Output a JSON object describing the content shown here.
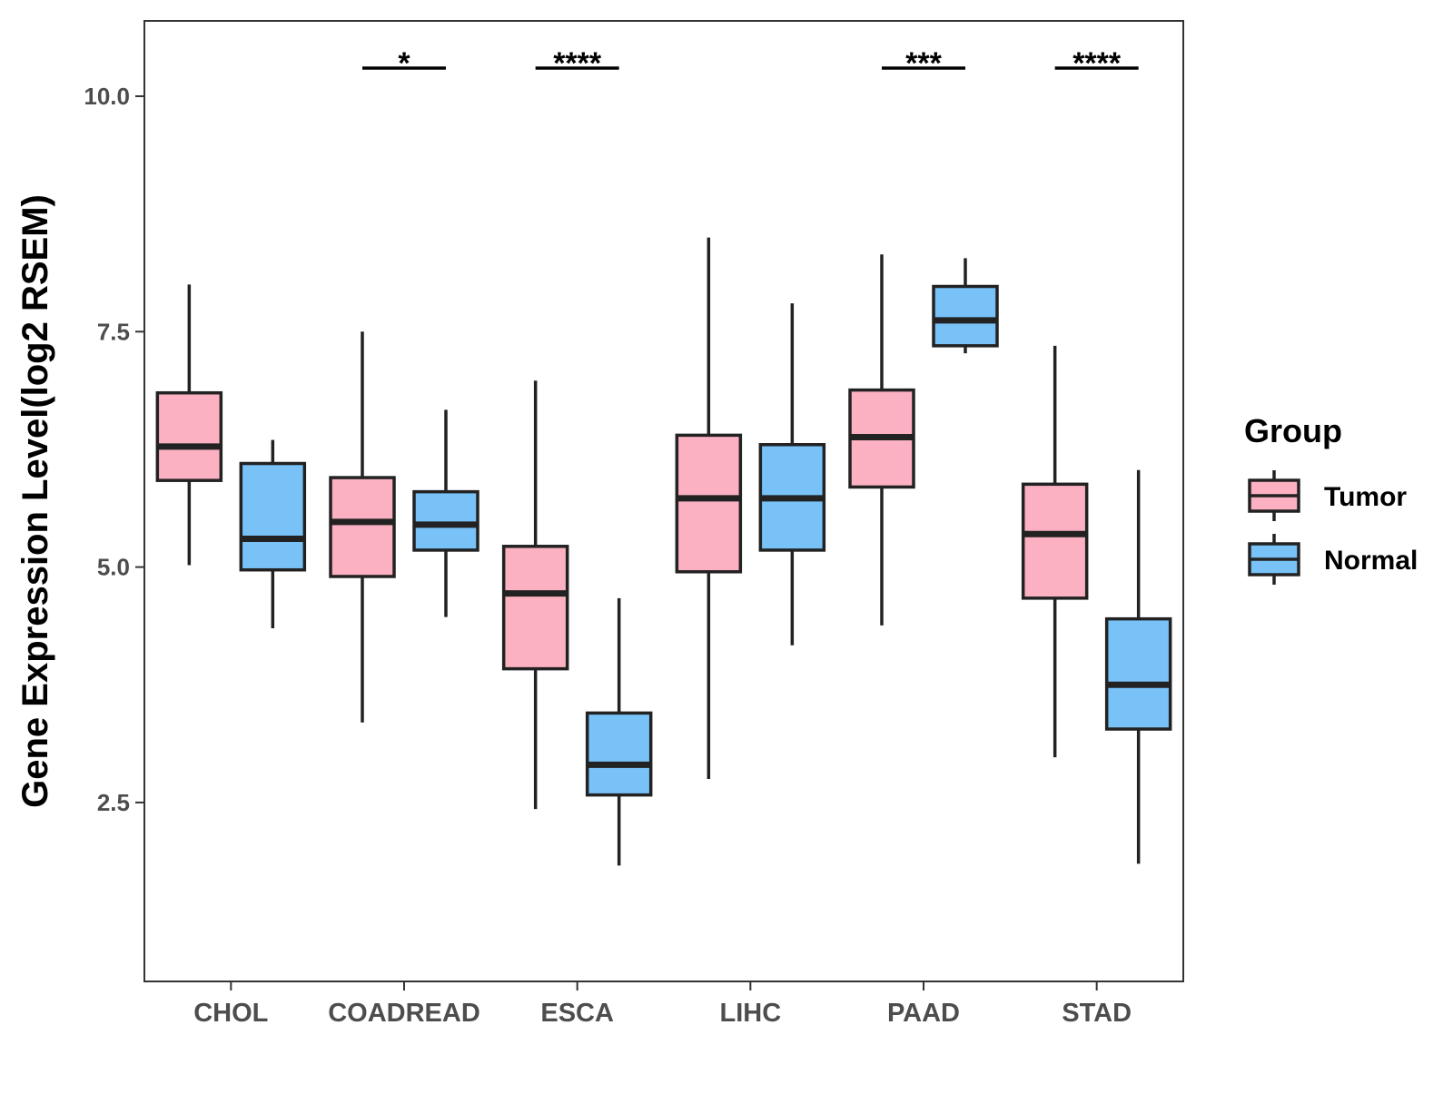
{
  "chart_data": {
    "type": "boxplot",
    "ylabel": "Gene Expression Level(log2 RSEM)",
    "xlabel": "",
    "ylim": [
      0.6,
      10.8
    ],
    "yticks": [
      "2.5",
      "5.0",
      "7.5",
      "10.0"
    ],
    "categories": [
      "CHOL",
      "COADREAD",
      "ESCA",
      "LIHC",
      "PAAD",
      "STAD"
    ],
    "legend": {
      "title": "Group",
      "position": "right"
    },
    "series": [
      {
        "name": "Tumor",
        "color": "#FBB1C2",
        "boxes": [
          {
            "min": 5.02,
            "q1": 5.92,
            "median": 6.28,
            "q3": 6.85,
            "max": 8.0
          },
          {
            "min": 3.35,
            "q1": 4.9,
            "median": 5.48,
            "q3": 5.95,
            "max": 7.5
          },
          {
            "min": 2.43,
            "q1": 3.92,
            "median": 4.72,
            "q3": 5.22,
            "max": 6.98
          },
          {
            "min": 2.75,
            "q1": 4.95,
            "median": 5.73,
            "q3": 6.4,
            "max": 8.5
          },
          {
            "min": 4.38,
            "q1": 5.85,
            "median": 6.38,
            "q3": 6.88,
            "max": 8.32
          },
          {
            "min": 2.98,
            "q1": 4.67,
            "median": 5.35,
            "q3": 5.88,
            "max": 7.35
          }
        ]
      },
      {
        "name": "Normal",
        "color": "#78C2F8",
        "boxes": [
          {
            "min": 4.35,
            "q1": 4.97,
            "median": 5.3,
            "q3": 6.1,
            "max": 6.35
          },
          {
            "min": 4.47,
            "q1": 5.18,
            "median": 5.45,
            "q3": 5.8,
            "max": 6.67
          },
          {
            "min": 1.83,
            "q1": 2.58,
            "median": 2.9,
            "q3": 3.45,
            "max": 4.67
          },
          {
            "min": 4.17,
            "q1": 5.18,
            "median": 5.73,
            "q3": 6.3,
            "max": 7.8
          },
          {
            "min": 7.27,
            "q1": 7.35,
            "median": 7.62,
            "q3": 7.98,
            "max": 8.28
          },
          {
            "min": 1.85,
            "q1": 3.28,
            "median": 3.75,
            "q3": 4.45,
            "max": 6.03
          }
        ]
      }
    ],
    "significance": [
      {
        "category": "CHOL",
        "label": ""
      },
      {
        "category": "COADREAD",
        "label": "*"
      },
      {
        "category": "ESCA",
        "label": "****"
      },
      {
        "category": "LIHC",
        "label": ""
      },
      {
        "category": "PAAD",
        "label": "***"
      },
      {
        "category": "STAD",
        "label": "****"
      }
    ]
  }
}
